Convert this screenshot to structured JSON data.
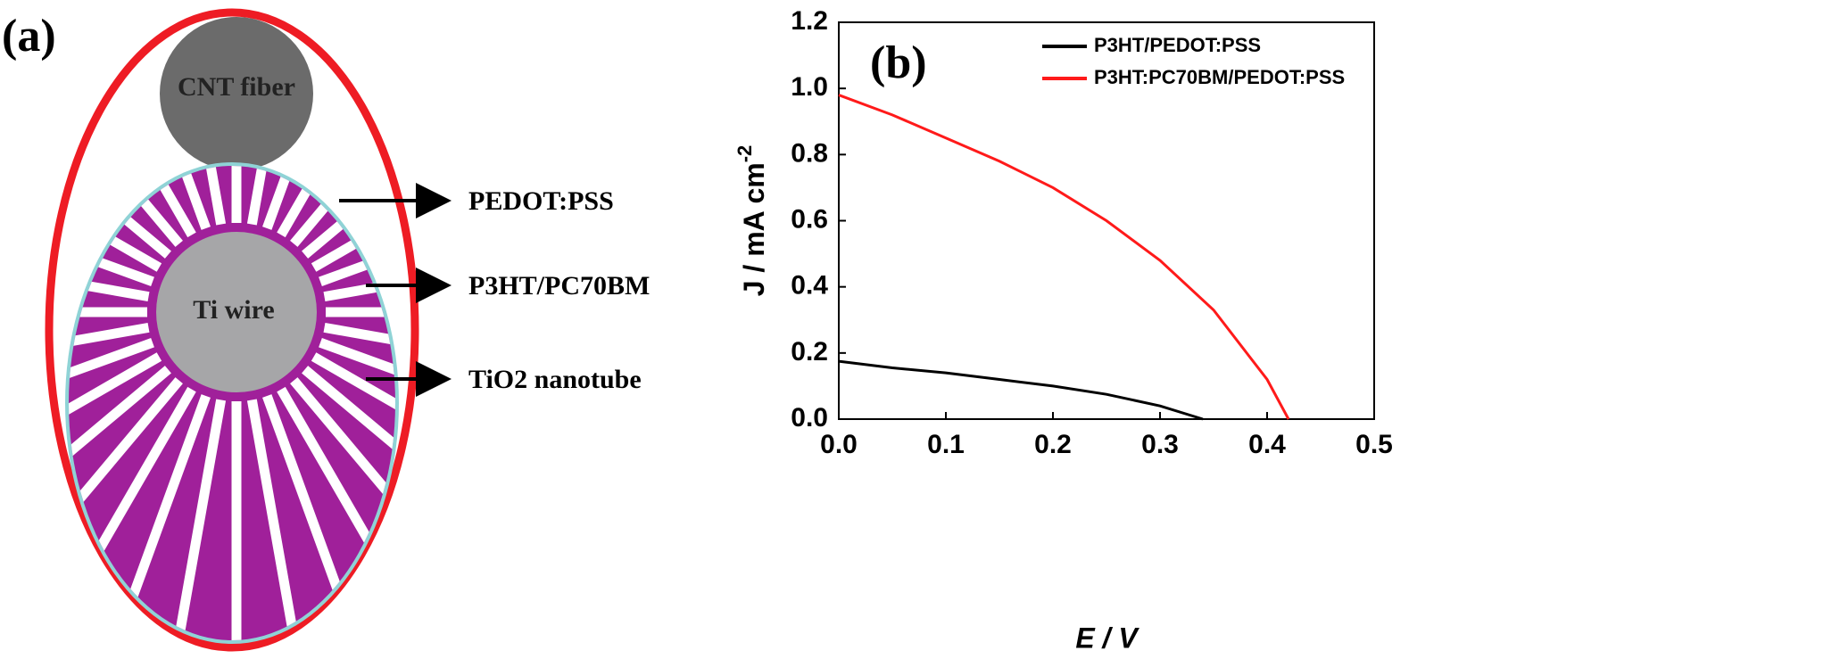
{
  "diagram": {
    "panel_label": "(a)",
    "core_label": "CNT fiber",
    "wire_label": "Ti wire",
    "layers": [
      "PEDOT:PSS",
      "P3HT/PC70BM",
      "TiO2 nanotube"
    ]
  },
  "chart_data": {
    "type": "line",
    "panel_label": "(b)",
    "xlabel": "E / V",
    "ylabel": "J / mA cm",
    "ylabel_sup": "-2",
    "xlim": [
      0,
      0.5
    ],
    "ylim": [
      0,
      1.2
    ],
    "xticks": [
      {
        "value": 0,
        "label": "0.0"
      },
      0.1,
      0.2,
      0.3,
      0.4,
      0.5
    ],
    "yticks": [
      {
        "value": 0,
        "label": "0.0"
      },
      0.2,
      0.4,
      0.6,
      0.8,
      {
        "value": 1,
        "label": "1.0"
      },
      1.2
    ],
    "legend": "upper right",
    "series": [
      {
        "name": "P3HT/PEDOT:PSS",
        "color": "#000000",
        "x": [
          0,
          0.05,
          0.1,
          0.15,
          0.2,
          0.25,
          0.3,
          0.34
        ],
        "values": [
          0.175,
          0.155,
          0.14,
          0.12,
          0.1,
          0.075,
          0.04,
          0
        ]
      },
      {
        "name": "P3HT:PC70BM/PEDOT:PSS",
        "color": "#ff1a1a",
        "x": [
          0,
          0.05,
          0.1,
          0.15,
          0.2,
          0.25,
          0.3,
          0.35,
          0.4,
          0.42
        ],
        "values": [
          0.98,
          0.92,
          0.85,
          0.78,
          0.7,
          0.6,
          0.48,
          0.33,
          0.12,
          0
        ]
      }
    ]
  }
}
